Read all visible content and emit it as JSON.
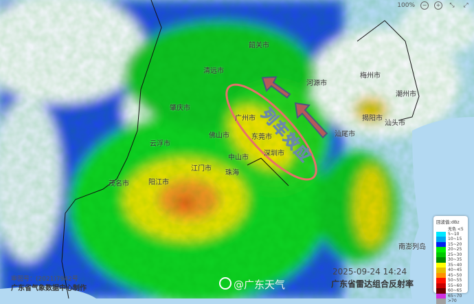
{
  "toolbar": {
    "zoom": "100%",
    "icons": [
      "zoom-out-icon",
      "zoom-in-icon",
      "shrink-icon",
      "expand-icon"
    ]
  },
  "annotation": {
    "label": "列车效应",
    "ellipse_color": "#e8706a",
    "arrow_color": "#b55a5a"
  },
  "cities": [
    "韶关市",
    "清远市",
    "河源市",
    "梅州市",
    "潮州市",
    "揭阳市",
    "汕头市",
    "汕尾市",
    "肇庆市",
    "广州市",
    "佛山市",
    "东莞市",
    "深圳市",
    "中山市",
    "珠海",
    "云浮市",
    "江门市",
    "阳江市",
    "茂名市",
    "南澎列岛"
  ],
  "legend": {
    "title": "回波值:dBz",
    "items": [
      {
        "label": "无色 <5",
        "color": "#ffffff"
      },
      {
        "label": "5~10",
        "color": "#00e8ff"
      },
      {
        "label": "10~15",
        "color": "#00a8f0"
      },
      {
        "label": "15~20",
        "color": "#0020f0"
      },
      {
        "label": "20~25",
        "color": "#00f000"
      },
      {
        "label": "25~30",
        "color": "#00c800"
      },
      {
        "label": "30~35",
        "color": "#008c00"
      },
      {
        "label": "35~40",
        "color": "#ffff00"
      },
      {
        "label": "40~45",
        "color": "#e8c000"
      },
      {
        "label": "45~50",
        "color": "#ff9000"
      },
      {
        "label": "50~55",
        "color": "#ff1000"
      },
      {
        "label": "55~60",
        "color": "#c80000"
      },
      {
        "label": "60~65",
        "color": "#700000"
      },
      {
        "label": "65~70",
        "color": "#d030e0"
      },
      {
        "label": ">70",
        "color": "#a0a0a0"
      }
    ]
  },
  "footer": {
    "approval": "审图号：(2021)7942号",
    "producer": "广东省气象数据中心制作",
    "watermark": "@广东天气",
    "timestamp": "2025-09-24 14:24",
    "product": "广东省雷达组合反射率"
  }
}
